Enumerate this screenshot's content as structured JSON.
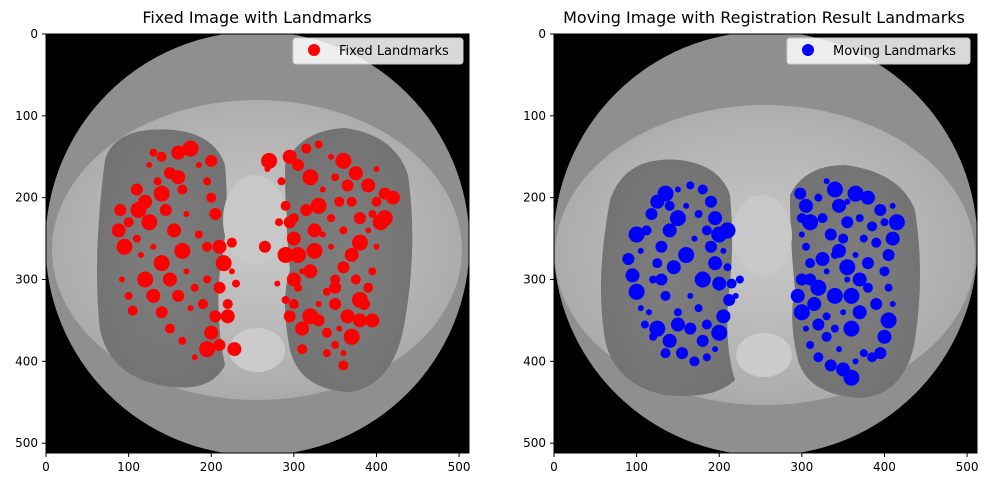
{
  "chart_data": [
    {
      "type": "scatter",
      "title": "Fixed Image with Landmarks",
      "background": "chest CT axial slice (grayscale)",
      "xlim": [
        0,
        512
      ],
      "ylim": [
        512,
        0
      ],
      "x_ticks": [
        "0",
        "100",
        "200",
        "300",
        "400",
        "500"
      ],
      "y_ticks": [
        "0",
        "100",
        "200",
        "300",
        "400",
        "500"
      ],
      "grid": false,
      "legend_position": "top-right",
      "series": [
        {
          "name": "Fixed Landmarks",
          "color": "#ff0000",
          "points": [
            [
              90,
              215
            ],
            [
              88,
              240
            ],
            [
              95,
              260
            ],
            [
              92,
              300
            ],
            [
              100,
              320
            ],
            [
              105,
              338
            ],
            [
              110,
              190
            ],
            [
              120,
              205
            ],
            [
              125,
              230
            ],
            [
              130,
              260
            ],
            [
              135,
              180
            ],
            [
              140,
              150
            ],
            [
              150,
              170
            ],
            [
              160,
              145
            ],
            [
              175,
              140
            ],
            [
              185,
              160
            ],
            [
              195,
              180
            ],
            [
              200,
              200
            ],
            [
              205,
              220
            ],
            [
              210,
              260
            ],
            [
              215,
              280
            ],
            [
              225,
              290
            ],
            [
              230,
              305
            ],
            [
              220,
              330
            ],
            [
              205,
              345
            ],
            [
              200,
              365
            ],
            [
              195,
              385
            ],
            [
              180,
              395
            ],
            [
              165,
              375
            ],
            [
              150,
              360
            ],
            [
              140,
              340
            ],
            [
              130,
              320
            ],
            [
              120,
              300
            ],
            [
              115,
              270
            ],
            [
              110,
              250
            ],
            [
              100,
              230
            ],
            [
              145,
              215
            ],
            [
              155,
              240
            ],
            [
              165,
              265
            ],
            [
              170,
              290
            ],
            [
              180,
              310
            ],
            [
              190,
              330
            ],
            [
              160,
              320
            ],
            [
              150,
              300
            ],
            [
              140,
              280
            ],
            [
              170,
              220
            ],
            [
              185,
              245
            ],
            [
              195,
              260
            ],
            [
              210,
              310
            ],
            [
              220,
              345
            ],
            [
              140,
              195
            ],
            [
              125,
              160
            ],
            [
              130,
              145
            ],
            [
              165,
              190
            ],
            [
              200,
              155
            ],
            [
              160,
              175
            ],
            [
              112,
              215
            ],
            [
              175,
              335
            ],
            [
              195,
              300
            ],
            [
              225,
              255
            ],
            [
              210,
              380
            ],
            [
              228,
              385
            ],
            [
              270,
              155
            ],
            [
              268,
              165
            ],
            [
              285,
              180
            ],
            [
              290,
              210
            ],
            [
              295,
              230
            ],
            [
              300,
              250
            ],
            [
              305,
              270
            ],
            [
              310,
              290
            ],
            [
              305,
              310
            ],
            [
              300,
              330
            ],
            [
              295,
              345
            ],
            [
              310,
              360
            ],
            [
              320,
              345
            ],
            [
              330,
              330
            ],
            [
              340,
              315
            ],
            [
              350,
              300
            ],
            [
              360,
              285
            ],
            [
              370,
              270
            ],
            [
              380,
              255
            ],
            [
              390,
              240
            ],
            [
              395,
              220
            ],
            [
              400,
              205
            ],
            [
              410,
              195
            ],
            [
              420,
              200
            ],
            [
              405,
              230
            ],
            [
              400,
              260
            ],
            [
              395,
              290
            ],
            [
              390,
              310
            ],
            [
              385,
              330
            ],
            [
              380,
              350
            ],
            [
              370,
              370
            ],
            [
              360,
              390
            ],
            [
              350,
              380
            ],
            [
              340,
              365
            ],
            [
              330,
              350
            ],
            [
              320,
              290
            ],
            [
              325,
              265
            ],
            [
              335,
              245
            ],
            [
              345,
              225
            ],
            [
              355,
              205
            ],
            [
              365,
              185
            ],
            [
              375,
              170
            ],
            [
              360,
              155
            ],
            [
              345,
              150
            ],
            [
              330,
              135
            ],
            [
              315,
              140
            ],
            [
              305,
              160
            ],
            [
              295,
              150
            ],
            [
              320,
              175
            ],
            [
              335,
              190
            ],
            [
              350,
              175
            ],
            [
              370,
              205
            ],
            [
              380,
              225
            ],
            [
              390,
              185
            ],
            [
              330,
              210
            ],
            [
              345,
              260
            ],
            [
              360,
              240
            ],
            [
              375,
              300
            ],
            [
              350,
              330
            ],
            [
              365,
              345
            ],
            [
              380,
              325
            ],
            [
              355,
              360
            ],
            [
              340,
              390
            ],
            [
              360,
              405
            ],
            [
              315,
              215
            ],
            [
              325,
              240
            ],
            [
              290,
              270
            ],
            [
              280,
              305
            ],
            [
              290,
              325
            ],
            [
              310,
              385
            ],
            [
              350,
              310
            ],
            [
              395,
              350
            ],
            [
              410,
              225
            ],
            [
              400,
              165
            ],
            [
              282,
              230
            ],
            [
              300,
              225
            ],
            [
              265,
              260
            ],
            [
              300,
              300
            ]
          ]
        },
        {
          "name": "Moving Landmarks",
          "color": "#0000ff",
          "points": [
            [
              90,
              275
            ],
            [
              95,
              295
            ],
            [
              100,
              315
            ],
            [
              105,
              335
            ],
            [
              110,
              355
            ],
            [
              112,
              240
            ],
            [
              118,
              220
            ],
            [
              125,
              205
            ],
            [
              135,
              195
            ],
            [
              150,
              190
            ],
            [
              165,
              185
            ],
            [
              180,
              190
            ],
            [
              190,
              205
            ],
            [
              195,
              225
            ],
            [
              200,
              245
            ],
            [
              205,
              265
            ],
            [
              210,
              285
            ],
            [
              215,
              305
            ],
            [
              212,
              325
            ],
            [
              205,
              345
            ],
            [
              200,
              365
            ],
            [
              195,
              385
            ],
            [
              185,
              395
            ],
            [
              170,
              400
            ],
            [
              155,
              390
            ],
            [
              140,
              375
            ],
            [
              125,
              360
            ],
            [
              115,
              340
            ],
            [
              120,
              300
            ],
            [
              125,
              280
            ],
            [
              130,
              260
            ],
            [
              140,
              240
            ],
            [
              150,
              225
            ],
            [
              160,
              210
            ],
            [
              175,
              220
            ],
            [
              185,
              240
            ],
            [
              190,
              260
            ],
            [
              195,
              280
            ],
            [
              180,
              300
            ],
            [
              165,
              320
            ],
            [
              150,
              340
            ],
            [
              135,
              320
            ],
            [
              130,
              300
            ],
            [
              145,
              285
            ],
            [
              160,
              270
            ],
            [
              170,
              250
            ],
            [
              175,
              335
            ],
            [
              185,
              355
            ],
            [
              165,
              360
            ],
            [
              150,
              355
            ],
            [
              100,
              245
            ],
            [
              105,
              265
            ],
            [
              120,
              370
            ],
            [
              135,
              390
            ],
            [
              180,
              375
            ],
            [
              200,
              305
            ],
            [
              210,
              240
            ],
            [
              220,
              320
            ],
            [
              225,
              300
            ],
            [
              140,
              210
            ],
            [
              298,
              195
            ],
            [
              305,
              210
            ],
            [
              310,
              230
            ],
            [
              300,
              245
            ],
            [
              305,
              260
            ],
            [
              310,
              280
            ],
            [
              300,
              300
            ],
            [
              295,
              320
            ],
            [
              300,
              340
            ],
            [
              305,
              360
            ],
            [
              310,
              380
            ],
            [
              320,
              395
            ],
            [
              335,
              405
            ],
            [
              350,
              410
            ],
            [
              360,
              420
            ],
            [
              365,
              400
            ],
            [
              375,
              390
            ],
            [
              385,
              395
            ],
            [
              395,
              390
            ],
            [
              400,
              370
            ],
            [
              405,
              350
            ],
            [
              410,
              330
            ],
            [
              405,
              310
            ],
            [
              400,
              290
            ],
            [
              405,
              270
            ],
            [
              410,
              250
            ],
            [
              415,
              230
            ],
            [
              410,
              210
            ],
            [
              400,
              230
            ],
            [
              390,
              255
            ],
            [
              380,
              280
            ],
            [
              370,
              300
            ],
            [
              360,
              320
            ],
            [
              350,
              340
            ],
            [
              340,
              360
            ],
            [
              330,
              370
            ],
            [
              320,
              355
            ],
            [
              315,
              330
            ],
            [
              320,
              310
            ],
            [
              330,
              290
            ],
            [
              340,
              270
            ],
            [
              350,
              250
            ],
            [
              355,
              230
            ],
            [
              345,
              210
            ],
            [
              340,
              190
            ],
            [
              330,
              180
            ],
            [
              320,
              200
            ],
            [
              325,
              225
            ],
            [
              335,
              245
            ],
            [
              345,
              265
            ],
            [
              355,
              285
            ],
            [
              365,
              270
            ],
            [
              375,
              250
            ],
            [
              385,
              235
            ],
            [
              395,
              215
            ],
            [
              380,
              200
            ],
            [
              365,
              195
            ],
            [
              355,
              205
            ],
            [
              370,
              225
            ],
            [
              380,
              310
            ],
            [
              390,
              330
            ],
            [
              370,
              340
            ],
            [
              360,
              360
            ],
            [
              345,
              385
            ],
            [
              330,
              345
            ],
            [
              300,
              225
            ],
            [
              310,
              300
            ],
            [
              325,
              275
            ],
            [
              340,
              320
            ],
            [
              355,
              300
            ]
          ]
        }
      ]
    },
    {
      "type": "scatter",
      "title": "Moving Image with Registration Result Landmarks",
      "background": "chest CT axial slice (grayscale)",
      "xlim": [
        0,
        512
      ],
      "ylim": [
        512,
        0
      ],
      "x_ticks": [
        "0",
        "100",
        "200",
        "300",
        "400",
        "500"
      ],
      "y_ticks": [
        "0",
        "100",
        "200",
        "300",
        "400",
        "500"
      ],
      "grid": false,
      "legend_position": "top-right",
      "series_ref": 1
    }
  ]
}
